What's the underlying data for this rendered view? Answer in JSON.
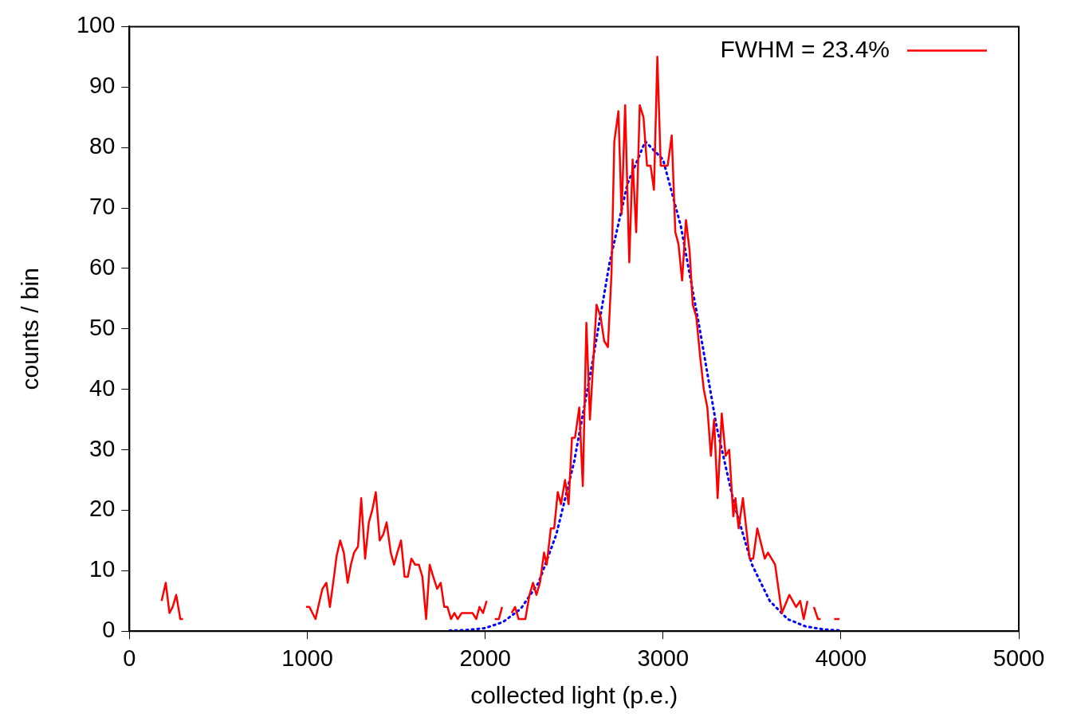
{
  "chart_data": {
    "type": "line",
    "xlabel": "collected light (p.e.)",
    "ylabel": "counts / bin",
    "xlim": [
      0,
      5000
    ],
    "xticks": [
      0,
      1000,
      2000,
      3000,
      4000,
      5000
    ],
    "ylim": [
      0,
      100
    ],
    "yticks": [
      0,
      10,
      20,
      30,
      40,
      50,
      60,
      70,
      80,
      90,
      100
    ],
    "grid": false,
    "legend": "top right",
    "marker": "none",
    "series": [
      {
        "name": "FWHM = 23.4%",
        "color": "#ff0000",
        "line_style": "solid",
        "x": [
          181,
          204,
          225,
          243,
          263,
          286,
          301,
          600,
          993,
          1012,
          1046,
          1069,
          1085,
          1107,
          1127,
          1150,
          1165,
          1185,
          1205,
          1227,
          1245,
          1263,
          1285,
          1303,
          1325,
          1346,
          1365,
          1385,
          1407,
          1427,
          1446,
          1469,
          1488,
          1506,
          1527,
          1547,
          1565,
          1585,
          1606,
          1627,
          1647,
          1668,
          1688,
          1708,
          1730,
          1750,
          1770,
          1788,
          1808,
          1827,
          1846,
          1868,
          1929,
          1950,
          1968,
          1988,
          2008,
          2030,
          2054,
          2077,
          2095,
          2098,
          2100,
          2120,
          2149,
          2168,
          2188,
          2226,
          2249,
          2269,
          2288,
          2308,
          2331,
          2346,
          2369,
          2388,
          2408,
          2426,
          2449,
          2469,
          2488,
          2505,
          2529,
          2549,
          2569,
          2589,
          2626,
          2649,
          2669,
          2690,
          2710,
          2726,
          2749,
          2767,
          2787,
          2810,
          2829,
          2849,
          2869,
          2890,
          2910,
          2930,
          2949,
          2968,
          2987,
          3026,
          3049,
          3069,
          3087,
          3107,
          3129,
          3149,
          3167,
          3187,
          3210,
          3229,
          3249,
          3269,
          3287,
          3307,
          3330,
          3352,
          3372,
          3395,
          3407,
          3425,
          3449,
          3487,
          3507,
          3530,
          3572,
          3590,
          3630,
          3668,
          3710,
          3748,
          3771,
          3791,
          3812,
          3830,
          3848,
          3871,
          3886,
          3930,
          3962,
          3992
        ],
        "values": [
          5,
          8,
          3,
          4,
          6,
          2,
          2,
          null,
          4,
          4,
          2,
          5,
          7,
          8,
          4,
          9,
          12.5,
          15,
          13,
          8,
          11,
          13,
          14,
          22,
          12,
          18,
          20,
          23,
          15,
          16,
          18,
          13,
          11,
          13,
          15,
          9,
          9,
          12,
          11,
          11,
          9,
          2,
          11,
          9,
          7,
          8,
          4,
          4,
          2,
          3,
          2,
          3,
          3,
          2,
          4,
          3,
          5,
          null,
          2,
          2,
          4,
          null,
          4,
          null,
          3,
          4,
          2,
          2,
          6,
          8,
          6,
          8,
          13,
          11,
          17,
          17,
          23,
          21,
          25,
          21,
          32,
          32,
          37,
          24,
          51,
          35,
          54,
          52,
          48,
          47,
          59,
          81,
          86,
          69,
          87,
          61,
          78,
          66,
          87,
          85,
          77,
          77,
          73,
          95,
          77,
          77,
          82,
          66,
          64,
          58,
          68,
          63,
          54,
          52,
          45,
          40,
          37,
          29,
          35,
          22,
          36,
          29,
          30,
          19,
          22,
          17,
          22,
          12,
          12,
          17,
          12,
          13,
          11,
          3,
          6,
          4,
          5,
          2,
          5,
          null,
          4,
          2,
          2,
          null,
          2,
          2
        ]
      },
      {
        "color": "#0000ff",
        "line_style": "dotted",
        "x": [
          1800,
          1900,
          2000,
          2100,
          2200,
          2300,
          2400,
          2500,
          2600,
          2700,
          2800,
          2900,
          3000,
          3100,
          3200,
          3300,
          3400,
          3500,
          3600,
          3700,
          3800,
          3900,
          4000
        ],
        "values": [
          0.1,
          0.2,
          0.5,
          1.5,
          3.7,
          8,
          16,
          28,
          44,
          61,
          74,
          81,
          78,
          67,
          51,
          34,
          21,
          11,
          5,
          2,
          0.8,
          0.3,
          0.1
        ]
      }
    ]
  }
}
